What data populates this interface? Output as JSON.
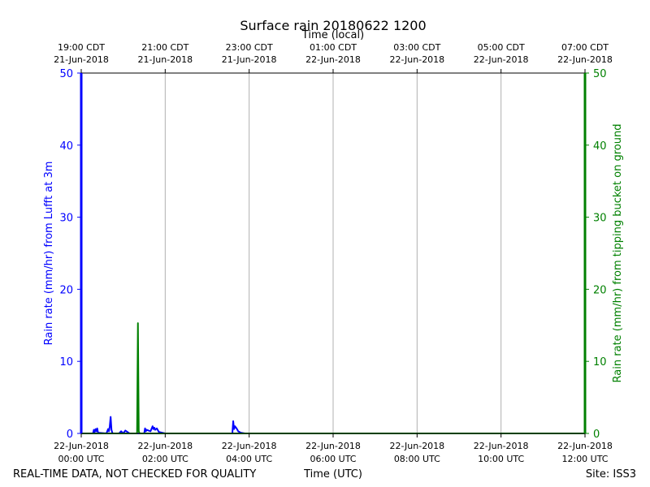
{
  "chart_data": {
    "type": "line",
    "title": "Surface rain 20180622 1200",
    "xlabel_top": "Time (local)",
    "xlabel_bottom": "Time (UTC)",
    "ylabel_left": "Rain rate (mm/hr) from Lufft at 3m",
    "ylabel_right": "Rain rate (mm/hr) from tipping bucket on ground",
    "xlim_utc_hours": [
      0,
      12
    ],
    "ylim_left": [
      0,
      50
    ],
    "ylim_right": [
      0,
      50
    ],
    "yticks_left": [
      0,
      10,
      20,
      30,
      40,
      50
    ],
    "yticks_right": [
      0,
      10,
      20,
      30,
      40,
      50
    ],
    "grid": "vertical",
    "bottom_ticks": [
      {
        "hour": 0,
        "line1": "22-Jun-2018",
        "line2": "00:00 UTC"
      },
      {
        "hour": 2,
        "line1": "22-Jun-2018",
        "line2": "02:00 UTC"
      },
      {
        "hour": 4,
        "line1": "22-Jun-2018",
        "line2": "04:00 UTC"
      },
      {
        "hour": 6,
        "line1": "22-Jun-2018",
        "line2": "06:00 UTC"
      },
      {
        "hour": 8,
        "line1": "22-Jun-2018",
        "line2": "08:00 UTC"
      },
      {
        "hour": 10,
        "line1": "22-Jun-2018",
        "line2": "10:00 UTC"
      },
      {
        "hour": 12,
        "line1": "22-Jun-2018",
        "line2": "12:00 UTC"
      }
    ],
    "top_ticks": [
      {
        "hour": 0,
        "line1": "19:00 CDT",
        "line2": "21-Jun-2018"
      },
      {
        "hour": 2,
        "line1": "21:00 CDT",
        "line2": "21-Jun-2018"
      },
      {
        "hour": 4,
        "line1": "23:00 CDT",
        "line2": "21-Jun-2018"
      },
      {
        "hour": 6,
        "line1": "01:00 CDT",
        "line2": "22-Jun-2018"
      },
      {
        "hour": 8,
        "line1": "03:00 CDT",
        "line2": "22-Jun-2018"
      },
      {
        "hour": 10,
        "line1": "05:00 CDT",
        "line2": "22-Jun-2018"
      },
      {
        "hour": 12,
        "line1": "07:00 CDT",
        "line2": "22-Jun-2018"
      }
    ],
    "series": [
      {
        "axis": "left",
        "color": "#0000ff",
        "x": [
          0.0,
          0.28,
          0.3,
          0.32,
          0.34,
          0.36,
          0.38,
          0.4,
          0.6,
          0.64,
          0.66,
          0.68,
          0.7,
          0.72,
          0.74,
          0.76,
          0.9,
          0.95,
          1.0,
          1.05,
          1.1,
          1.15,
          1.3,
          1.5,
          1.52,
          1.54,
          1.56,
          1.6,
          1.65,
          1.7,
          1.72,
          1.74,
          1.76,
          1.8,
          1.85,
          2.0,
          3.6,
          3.62,
          3.64,
          3.66,
          3.7,
          3.74,
          3.8,
          3.9,
          12.0
        ],
        "y": [
          0.0,
          0.0,
          0.5,
          0.2,
          0.6,
          0.3,
          0.7,
          0.1,
          0.0,
          0.6,
          0.3,
          1.0,
          2.3,
          0.5,
          0.1,
          0.0,
          0.0,
          0.3,
          0.0,
          0.4,
          0.2,
          0.0,
          0.0,
          0.0,
          0.7,
          0.3,
          0.5,
          0.4,
          0.3,
          1.0,
          0.6,
          0.8,
          0.5,
          0.7,
          0.2,
          0.0,
          0.0,
          1.7,
          0.6,
          1.0,
          0.7,
          0.3,
          0.1,
          0.0,
          0.0
        ]
      },
      {
        "axis": "right",
        "color": "#008000",
        "x": [
          0.0,
          1.33,
          1.35,
          1.37,
          1.39,
          12.0
        ],
        "y": [
          0.0,
          0.0,
          15.3,
          0.3,
          0.0,
          0.0
        ]
      }
    ]
  },
  "footer": {
    "left": "REAL-TIME DATA, NOT CHECKED FOR QUALITY",
    "center": "Time (UTC)",
    "right": "Site: ISS3"
  },
  "colors": {
    "left_axis": "#0000ff",
    "right_axis": "#008000",
    "grid": "#b0b0b0"
  }
}
